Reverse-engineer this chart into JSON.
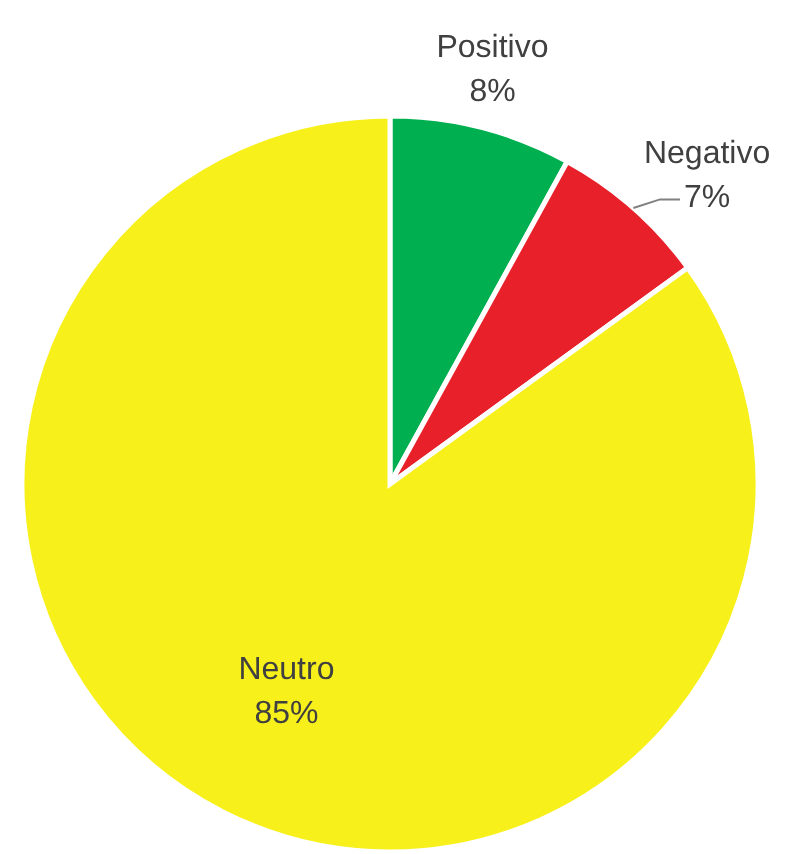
{
  "chart_data": {
    "type": "pie",
    "categories": [
      "Positivo",
      "Negativo",
      "Neutro"
    ],
    "values": [
      8,
      7,
      85
    ],
    "value_labels": [
      "8%",
      "7%",
      "85%"
    ],
    "colors": [
      "#00b050",
      "#e8202a",
      "#f7f01a"
    ]
  }
}
